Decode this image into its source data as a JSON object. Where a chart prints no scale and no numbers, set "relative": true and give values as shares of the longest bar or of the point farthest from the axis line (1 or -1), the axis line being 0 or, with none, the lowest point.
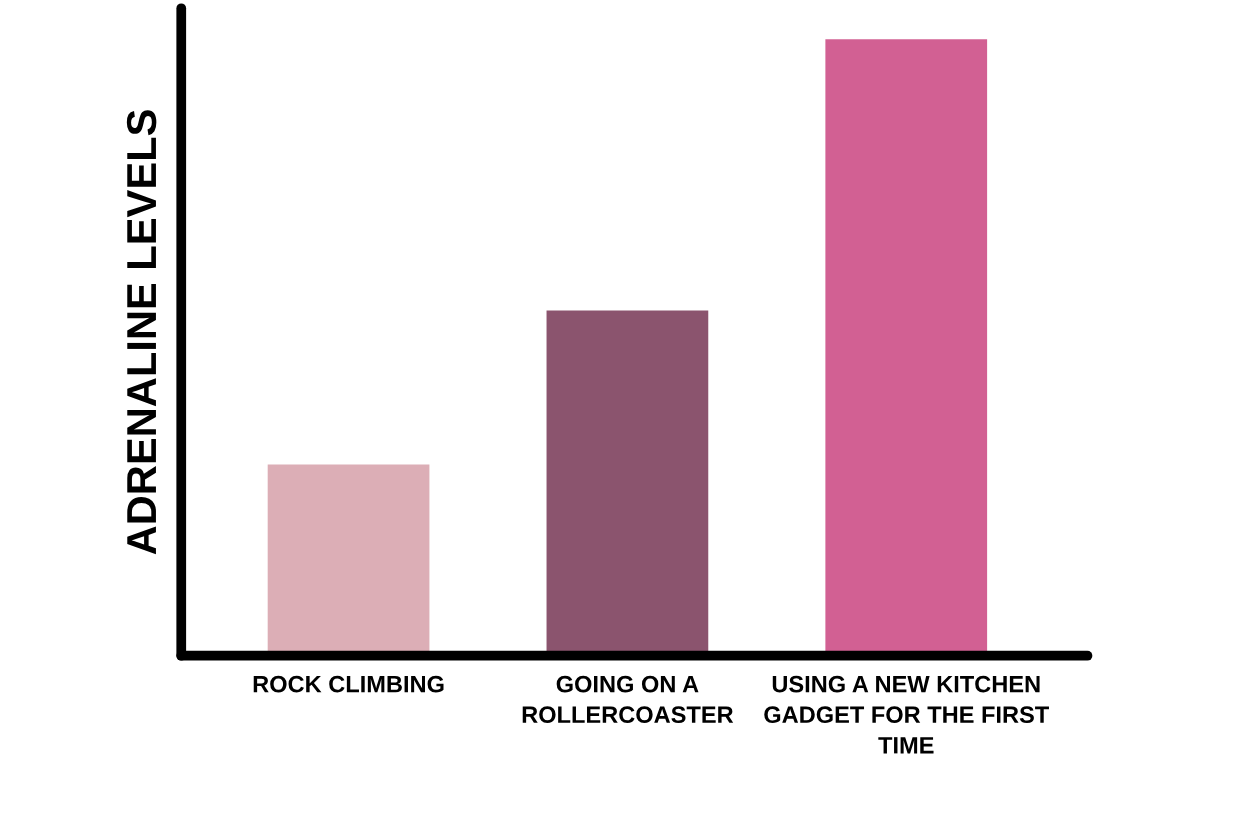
{
  "chart_data": {
    "type": "bar",
    "relative": true,
    "ylabel": "ADRENALINE LEVELS",
    "categories": [
      "ROCK CLIMBING",
      "GOING ON A\nROLLERCOASTER",
      "USING A NEW KITCHEN\nGADGET FOR THE FIRST\nTIME"
    ],
    "values": [
      0.31,
      0.56,
      1
    ],
    "colors": [
      "#dcaeb6",
      "#8b546e",
      "#d26093"
    ],
    "tick_labels": "x",
    "grid": false,
    "legend": false
  }
}
